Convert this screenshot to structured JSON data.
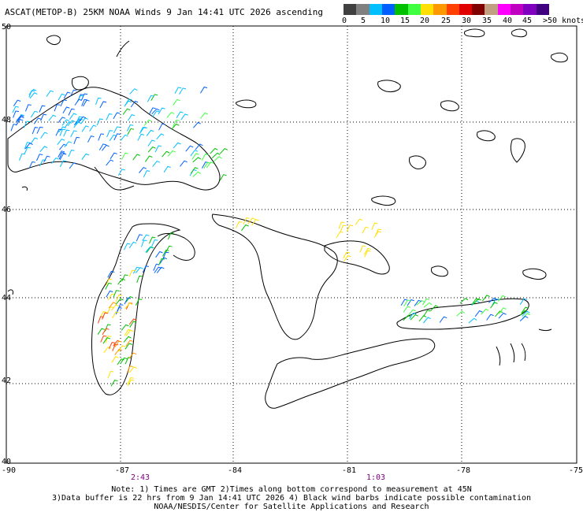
{
  "header": {
    "title": "ASCAT(METOP-B) 25KM NOAA Winds 9 Jan 14:41 UTC 2026 ascending"
  },
  "legend": {
    "unit_label": "knots",
    "colors": [
      "#404040",
      "#808080",
      "#00bfff",
      "#0060ff",
      "#00c000",
      "#40ff40",
      "#ffe000",
      "#ff9900",
      "#ff4000",
      "#e00000",
      "#800000",
      "#c0a080",
      "#ff00ff",
      "#c000c0",
      "#8000c0",
      "#400080"
    ],
    "labels": [
      "0",
      "5",
      "10",
      "15",
      "20",
      "25",
      "30",
      "35",
      "40",
      "45",
      ">50 knots"
    ]
  },
  "axes": {
    "lon_labels": [
      "-90",
      "-87",
      "-84",
      "-81",
      "-78",
      "-75"
    ],
    "lat_labels": [
      "50",
      "48",
      "46",
      "44",
      "42",
      "40"
    ]
  },
  "pass_times": [
    "2:43",
    "1:03"
  ],
  "notes": {
    "line1": "Note: 1) Times are GMT 2)Times along bottom correspond to measurement at 45N",
    "line2": "3)Data buffer is 22 hrs from 9 Jan 14:41 UTC 2026 4) Black wind barbs indicate possible contamination",
    "line3": "NOAA/NESDIS/Center for Satellite Applications and Research"
  }
}
